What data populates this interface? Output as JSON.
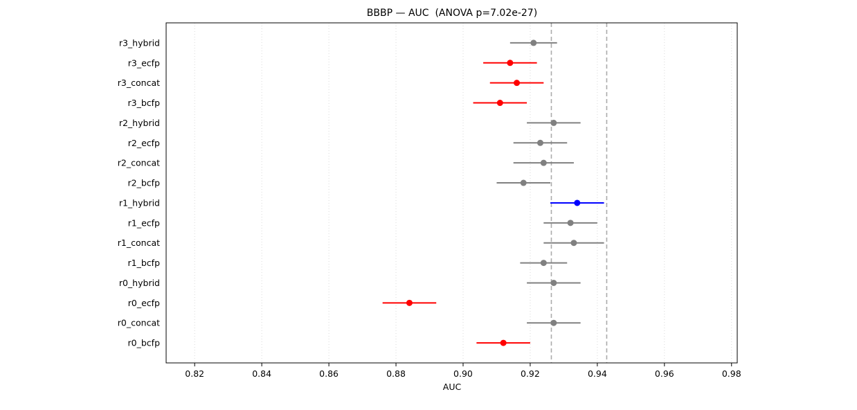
{
  "chart_data": {
    "type": "scatter",
    "subtype": "horizontal-errorbar",
    "title": "BBBP — AUC  (ANOVA p=7.02e-27)",
    "xlabel": "AUC",
    "ylabel": "",
    "xlim": [
      0.8115,
      0.9817
    ],
    "xticks": [
      0.82,
      0.84,
      0.86,
      0.88,
      0.9,
      0.92,
      0.94,
      0.96,
      0.98
    ],
    "grid": "vertical-dotted",
    "legend": "none",
    "reference_lines": [
      {
        "x": 0.9263,
        "style": "dashed"
      },
      {
        "x": 0.9428,
        "style": "dashed"
      }
    ],
    "series": [
      {
        "label": "r3_hybrid",
        "mean": 0.921,
        "err": 0.007,
        "color": "gray"
      },
      {
        "label": "r3_ecfp",
        "mean": 0.914,
        "err": 0.008,
        "color": "red"
      },
      {
        "label": "r3_concat",
        "mean": 0.916,
        "err": 0.008,
        "color": "red"
      },
      {
        "label": "r3_bcfp",
        "mean": 0.911,
        "err": 0.008,
        "color": "red"
      },
      {
        "label": "r2_hybrid",
        "mean": 0.927,
        "err": 0.008,
        "color": "gray"
      },
      {
        "label": "r2_ecfp",
        "mean": 0.923,
        "err": 0.008,
        "color": "gray"
      },
      {
        "label": "r2_concat",
        "mean": 0.924,
        "err": 0.009,
        "color": "gray"
      },
      {
        "label": "r2_bcfp",
        "mean": 0.918,
        "err": 0.008,
        "color": "gray"
      },
      {
        "label": "r1_hybrid",
        "mean": 0.934,
        "err": 0.008,
        "color": "blue"
      },
      {
        "label": "r1_ecfp",
        "mean": 0.932,
        "err": 0.008,
        "color": "gray"
      },
      {
        "label": "r1_concat",
        "mean": 0.933,
        "err": 0.009,
        "color": "gray"
      },
      {
        "label": "r1_bcfp",
        "mean": 0.924,
        "err": 0.007,
        "color": "gray"
      },
      {
        "label": "r0_hybrid",
        "mean": 0.927,
        "err": 0.008,
        "color": "gray"
      },
      {
        "label": "r0_ecfp",
        "mean": 0.884,
        "err": 0.008,
        "color": "red"
      },
      {
        "label": "r0_concat",
        "mean": 0.927,
        "err": 0.008,
        "color": "gray"
      },
      {
        "label": "r0_bcfp",
        "mean": 0.912,
        "err": 0.008,
        "color": "red"
      }
    ],
    "colors": {
      "gray": "#808080",
      "red": "#ff0000",
      "blue": "#0000ff",
      "grid": "#d9d9d9",
      "reference": "#ababab",
      "frame": "#000000",
      "text": "#000000"
    }
  }
}
